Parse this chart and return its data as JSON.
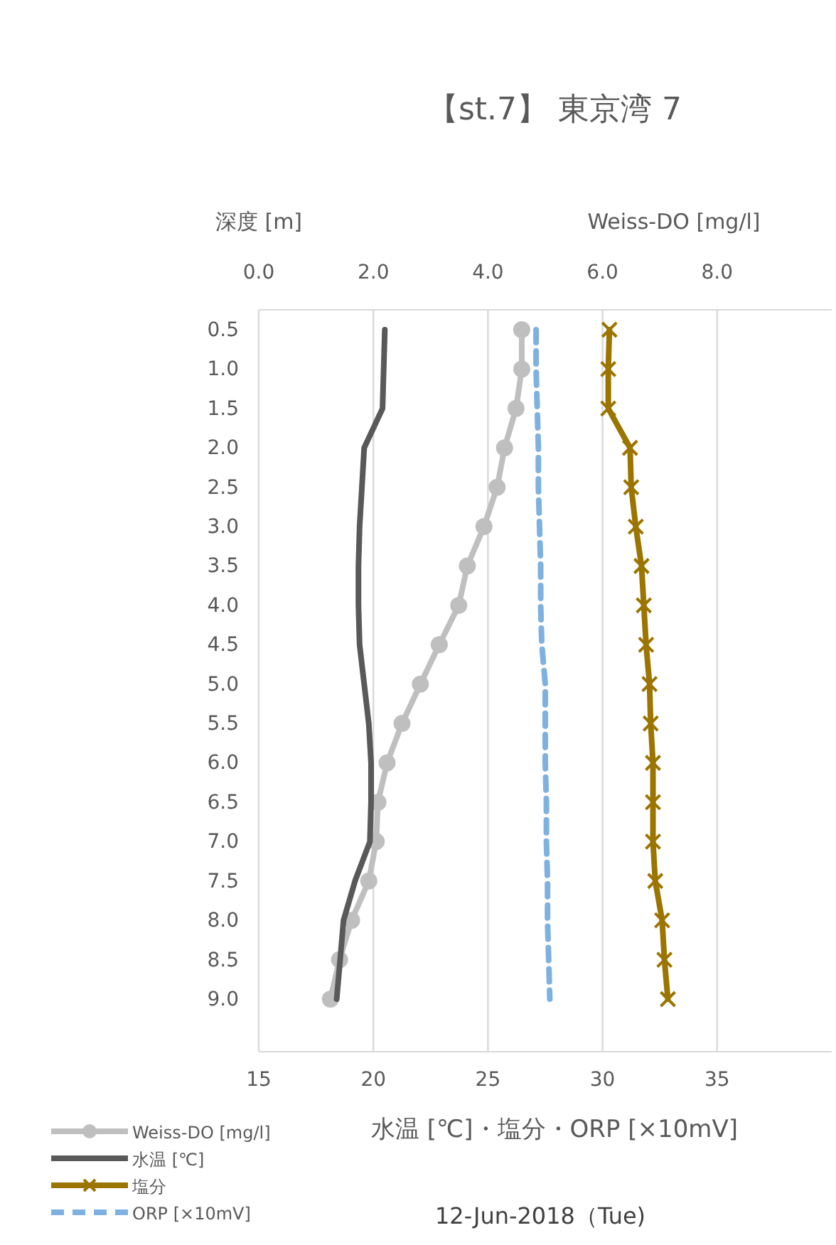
{
  "chart_data": {
    "type": "line",
    "orientation": "horizontal",
    "title": "【st.7】 東京湾 7",
    "ylabel": "深度 [m]",
    "xlabel": "水温 [℃]・塩分・ORP [×10mV]",
    "x2label": "Weiss-DO [mg/l]",
    "annotations": [
      "12-Jun-2018（Tue)"
    ],
    "categories": [
      "0.5",
      "1.0",
      "1.5",
      "2.0",
      "2.5",
      "3.0",
      "3.5",
      "4.0",
      "4.5",
      "5.0",
      "5.5",
      "6.0",
      "6.5",
      "7.0",
      "7.5",
      "8.0",
      "8.5",
      "9.0"
    ],
    "xlim": [
      15,
      40
    ],
    "xticks": [
      15,
      20,
      25,
      30,
      35
    ],
    "x2lim": [
      0,
      10
    ],
    "x2ticks": [
      {
        "value": 0,
        "label": "0.0"
      },
      {
        "value": 2,
        "label": "2.0"
      },
      {
        "value": 4,
        "label": "4.0"
      },
      {
        "value": 6,
        "label": "6.0"
      },
      {
        "value": 8,
        "label": "8.0"
      }
    ],
    "grid": "x",
    "legend": "bottom left",
    "series": [
      {
        "name": "Weiss-DO [mg/l]",
        "color": "#bfbfbf",
        "axis": "x2",
        "marker": "circle",
        "line_style": "solid",
        "values": [
          4.59,
          4.59,
          4.49,
          4.29,
          4.16,
          3.93,
          3.64,
          3.49,
          3.15,
          2.82,
          2.5,
          2.24,
          2.08,
          2.05,
          1.92,
          1.62,
          1.41,
          1.25
        ]
      },
      {
        "name": "水温 [℃]",
        "color": "#595959",
        "marker": "none",
        "line_style": "solid",
        "values": [
          20.5,
          20.45,
          20.4,
          19.6,
          19.5,
          19.4,
          19.35,
          19.35,
          19.4,
          19.6,
          19.8,
          19.9,
          19.9,
          19.85,
          19.2,
          18.7,
          18.55,
          18.4
        ]
      },
      {
        "name": "塩分",
        "color": "#9c7400",
        "marker": "cross",
        "line_style": "solid",
        "values": [
          30.3,
          30.25,
          30.25,
          31.2,
          31.25,
          31.45,
          31.7,
          31.8,
          31.9,
          32.05,
          32.1,
          32.2,
          32.2,
          32.2,
          32.3,
          32.6,
          32.7,
          32.85
        ]
      },
      {
        "name": "ORP [×10mV]",
        "color": "#7fb1e0",
        "marker": "none",
        "line_style": "dashed",
        "values": [
          27.1,
          27.1,
          27.15,
          27.2,
          27.2,
          27.25,
          27.3,
          27.3,
          27.35,
          27.5,
          27.5,
          27.5,
          27.55,
          27.55,
          27.6,
          27.6,
          27.65,
          27.7
        ]
      }
    ]
  }
}
